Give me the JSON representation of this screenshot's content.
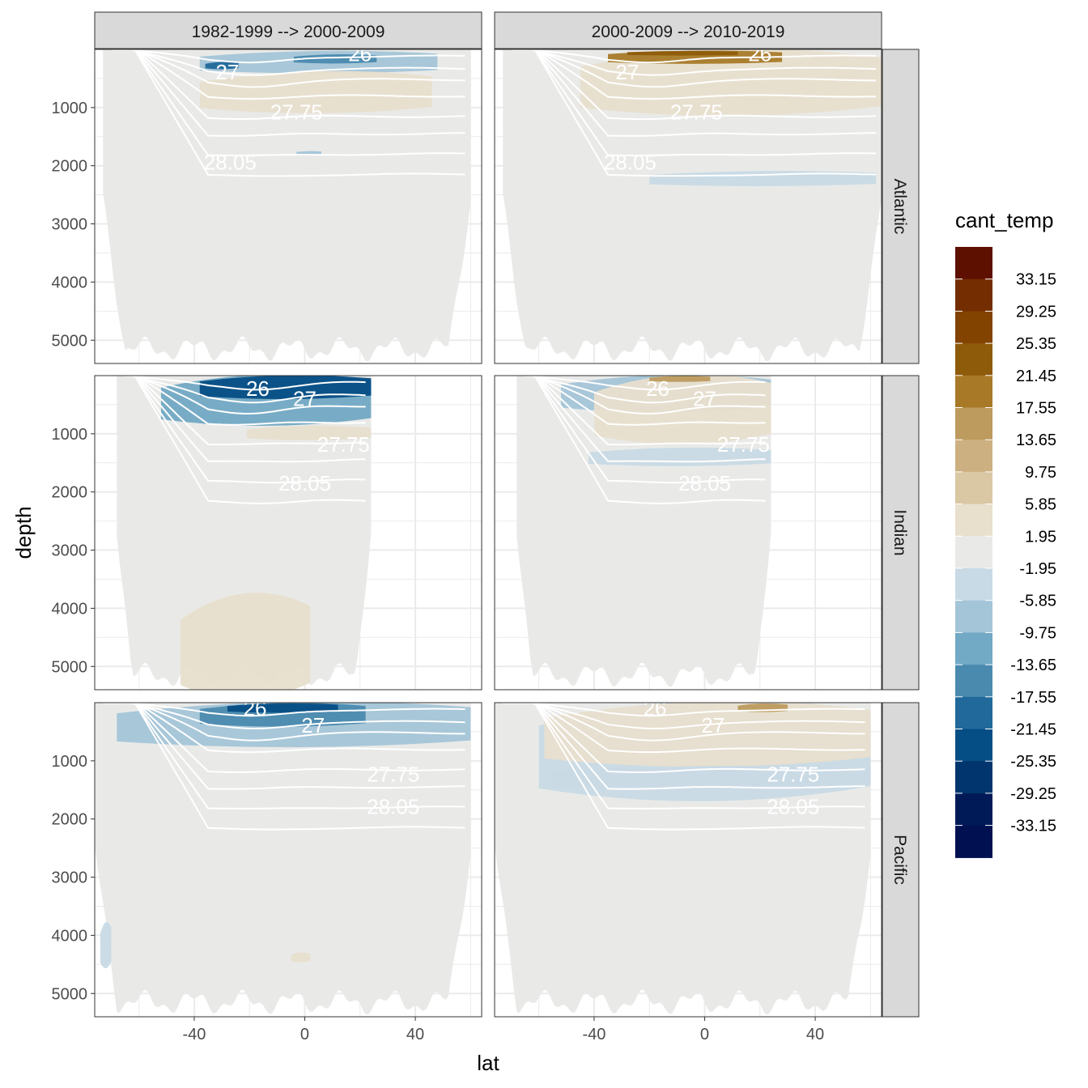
{
  "chart_data": {
    "type": "faceted-contour-section",
    "axes": {
      "xlabel": "lat",
      "ylabel": "depth",
      "xlim": [
        -76,
        64
      ],
      "ylim_reversed": [
        0,
        5400
      ],
      "xticks": [
        -40,
        0,
        40
      ],
      "yticks": [
        1000,
        2000,
        3000,
        4000,
        5000
      ]
    },
    "columns": [
      "1982-1999 --> 2000-2009",
      "2000-2009 --> 2010-2019"
    ],
    "rows": [
      "Atlantic",
      "Indian",
      "Pacific"
    ],
    "legend": {
      "title": "cant_temp",
      "labels": [
        "33.15",
        "29.25",
        "25.35",
        "21.45",
        "17.55",
        "13.65",
        "9.75",
        "5.85",
        "1.95",
        "-1.95",
        "-5.85",
        "-9.75",
        "-13.65",
        "-17.55",
        "-21.45",
        "-25.35",
        "-29.25",
        "-33.15"
      ],
      "colors": [
        "#5e1000",
        "#742d00",
        "#824300",
        "#8e5b0a",
        "#a87a28",
        "#bd9a5e",
        "#cdb081",
        "#dac7a4",
        "#e8dfcd",
        "#e9eae8",
        "#c8dae5",
        "#a4c5d8",
        "#72a9c4",
        "#4a8aaf",
        "#20699a",
        "#054d85",
        "#00366d",
        "#001a58",
        "#001050"
      ]
    },
    "isopycnal_labels": [
      "26",
      "27",
      "27.75",
      "28.05"
    ],
    "panels": [
      {
        "row": "Atlantic",
        "col": 0,
        "lat_range": [
          -73,
          60
        ],
        "contour_labels": [
          {
            "text": "26",
            "lat": 20,
            "depth": 80
          },
          {
            "text": "27",
            "lat": -28,
            "depth": 390
          },
          {
            "text": "27.75",
            "lat": -3,
            "depth": 1080
          },
          {
            "text": "28.05",
            "lat": -27,
            "depth": 1940
          }
        ],
        "anomalies": [
          {
            "class": "-5.85",
            "lat": [
              -38,
              48
            ],
            "depth": [
              40,
              380
            ]
          },
          {
            "class": "-17.55",
            "lat": [
              -36,
              -24
            ],
            "depth": [
              220,
              330
            ]
          },
          {
            "class": "-13.65",
            "lat": [
              -4,
              26
            ],
            "depth": [
              90,
              230
            ]
          },
          {
            "class": "5.85",
            "lat": [
              -38,
              46
            ],
            "depth": [
              400,
              1040
            ]
          },
          {
            "class": "-5.85",
            "lat": [
              -3,
              6
            ],
            "depth": [
              1750,
              1800
            ]
          }
        ]
      },
      {
        "row": "Atlantic",
        "col": 1,
        "lat_range": [
          -73,
          64
        ],
        "contour_labels": [
          {
            "text": "26",
            "lat": 20,
            "depth": 80
          },
          {
            "text": "27",
            "lat": -28,
            "depth": 390
          },
          {
            "text": "27.75",
            "lat": -3,
            "depth": 1080
          },
          {
            "text": "28.05",
            "lat": -27,
            "depth": 1940
          }
        ],
        "anomalies": [
          {
            "class": "5.85",
            "lat": [
              -45,
              64
            ],
            "depth": [
              40,
              1050
            ]
          },
          {
            "class": "21.45",
            "lat": [
              -35,
              28
            ],
            "depth": [
              30,
              230
            ]
          },
          {
            "class": "25.35",
            "lat": [
              -28,
              12
            ],
            "depth": [
              30,
              100
            ]
          },
          {
            "class": "-1.95",
            "lat": [
              -20,
              62
            ],
            "depth": [
              2100,
              2330
            ]
          }
        ]
      },
      {
        "row": "Indian",
        "col": 0,
        "lat_range": [
          -68,
          24
        ],
        "contour_labels": [
          {
            "text": "26",
            "lat": -17,
            "depth": 220
          },
          {
            "text": "27",
            "lat": 0,
            "depth": 400
          },
          {
            "text": "27.75",
            "lat": 14,
            "depth": 1180
          },
          {
            "text": "28.05",
            "lat": 0,
            "depth": 1850
          }
        ],
        "anomalies": [
          {
            "class": "-9.75",
            "lat": [
              -52,
              24
            ],
            "depth": [
              10,
              790
            ]
          },
          {
            "class": "-21.45",
            "lat": [
              -38,
              24
            ],
            "depth": [
              10,
              370
            ]
          },
          {
            "class": "5.85",
            "lat": [
              -21,
              24
            ],
            "depth": [
              870,
              1090
            ]
          },
          {
            "class": "5.85",
            "lat": [
              -45,
              2
            ],
            "depth": [
              3800,
              5400
            ]
          }
        ]
      },
      {
        "row": "Indian",
        "col": 1,
        "lat_range": [
          -68,
          24
        ],
        "contour_labels": [
          {
            "text": "26",
            "lat": -17,
            "depth": 220
          },
          {
            "text": "27",
            "lat": 0,
            "depth": 400
          },
          {
            "text": "27.75",
            "lat": 14,
            "depth": 1180
          },
          {
            "text": "28.05",
            "lat": 0,
            "depth": 1850
          }
        ],
        "anomalies": [
          {
            "class": "-5.85",
            "lat": [
              -52,
              24
            ],
            "depth": [
              10,
              580
            ]
          },
          {
            "class": "5.85",
            "lat": [
              -40,
              24
            ],
            "depth": [
              20,
              1080
            ]
          },
          {
            "class": "17.55",
            "lat": [
              -20,
              2
            ],
            "depth": [
              10,
              100
            ]
          },
          {
            "class": "-1.95",
            "lat": [
              -42,
              24
            ],
            "depth": [
              1250,
              1530
            ]
          }
        ]
      },
      {
        "row": "Pacific",
        "col": 0,
        "lat_range": [
          -76,
          60
        ],
        "contour_labels": [
          {
            "text": "26",
            "lat": -18,
            "depth": 100
          },
          {
            "text": "27",
            "lat": 3,
            "depth": 390
          },
          {
            "text": "27.75",
            "lat": 32,
            "depth": 1230
          },
          {
            "text": "28.05",
            "lat": 32,
            "depth": 1790
          }
        ],
        "anomalies": [
          {
            "class": "-5.85",
            "lat": [
              -68,
              60
            ],
            "depth": [
              10,
              700
            ]
          },
          {
            "class": "-13.65",
            "lat": [
              -38,
              22
            ],
            "depth": [
              20,
              380
            ]
          },
          {
            "class": "-21.45",
            "lat": [
              -28,
              12
            ],
            "depth": [
              20,
              160
            ]
          },
          {
            "class": "5.85",
            "lat": [
              -5,
              2
            ],
            "depth": [
              4300,
              4450
            ]
          },
          {
            "class": "-1.95",
            "lat": [
              -74,
              -70
            ],
            "depth": [
              3800,
              4500
            ]
          }
        ]
      },
      {
        "row": "Pacific",
        "col": 1,
        "lat_range": [
          -76,
          60
        ],
        "contour_labels": [
          {
            "text": "26",
            "lat": -18,
            "depth": 100
          },
          {
            "text": "27",
            "lat": 3,
            "depth": 390
          },
          {
            "text": "27.75",
            "lat": 32,
            "depth": 1230
          },
          {
            "text": "28.05",
            "lat": 32,
            "depth": 1790
          }
        ],
        "anomalies": [
          {
            "class": "-1.95",
            "lat": [
              -60,
              60
            ],
            "depth": [
              10,
              1550
            ]
          },
          {
            "class": "5.85",
            "lat": [
              -58,
              60
            ],
            "depth": [
              20,
              1010
            ]
          },
          {
            "class": "17.55",
            "lat": [
              12,
              30
            ],
            "depth": [
              20,
              150
            ]
          },
          {
            "class": "-1.95",
            "lat": [
              -55,
              60
            ],
            "depth": [
              1100,
              1450
            ]
          }
        ]
      }
    ]
  }
}
